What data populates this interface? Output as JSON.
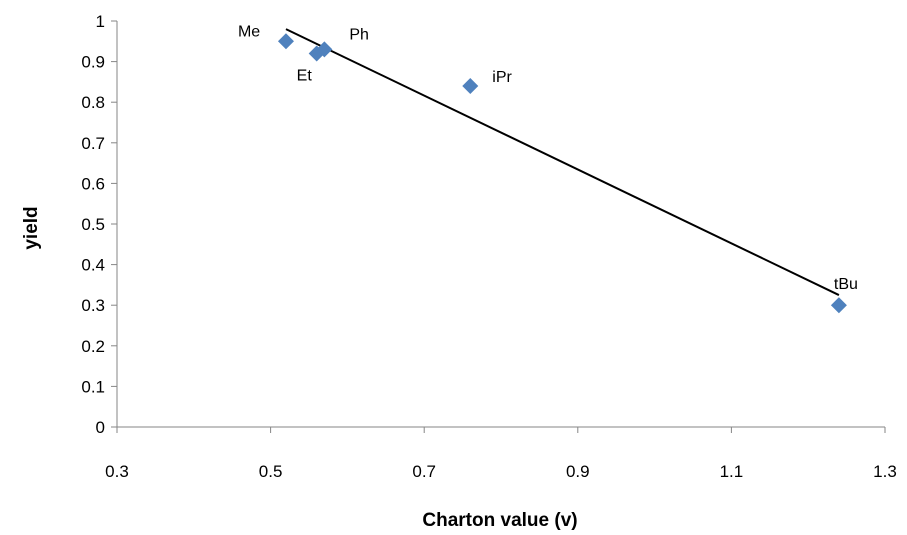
{
  "chart_data": {
    "type": "scatter",
    "title": "",
    "xlabel": "Charton value (v)",
    "ylabel": "yield",
    "xlim": [
      0.3,
      1.3
    ],
    "ylim": [
      0,
      1
    ],
    "x_ticks": [
      "0.3",
      "0.5",
      "0.7",
      "0.9",
      "1.1",
      "1.3"
    ],
    "y_ticks": [
      "0",
      "0.1",
      "0.2",
      "0.3",
      "0.4",
      "0.5",
      "0.6",
      "0.7",
      "0.8",
      "0.9",
      "1"
    ],
    "grid": false,
    "legend": "none",
    "marker_color": "#4f81bd",
    "points": [
      {
        "label": "Me",
        "x": 0.52,
        "y": 0.95
      },
      {
        "label": "Et",
        "x": 0.56,
        "y": 0.92
      },
      {
        "label": "Ph",
        "x": 0.57,
        "y": 0.93
      },
      {
        "label": "iPr",
        "x": 0.76,
        "y": 0.84
      },
      {
        "label": "tBu",
        "x": 1.24,
        "y": 0.3
      }
    ],
    "trendline": {
      "type": "linear",
      "x": [
        0.52,
        1.24
      ],
      "y": [
        0.98,
        0.325
      ],
      "color": "#000000"
    }
  }
}
